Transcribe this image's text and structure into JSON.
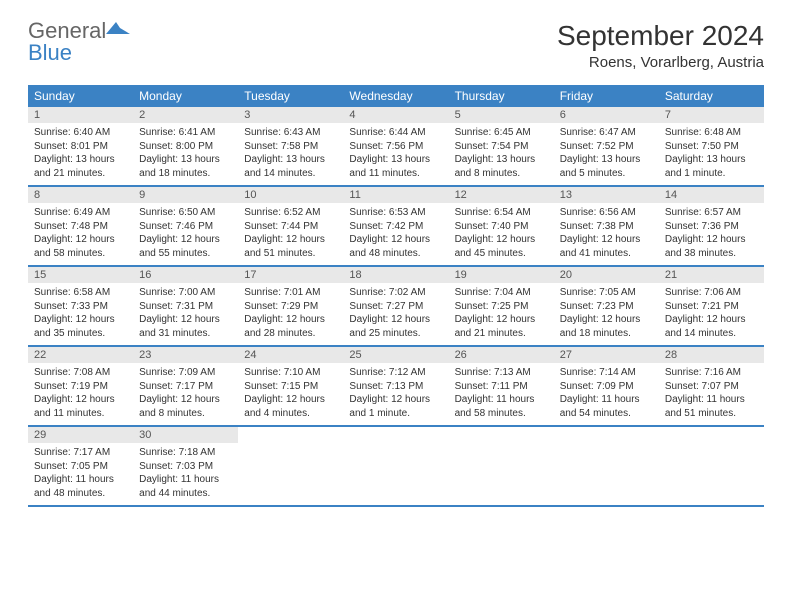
{
  "logo": {
    "general": "General",
    "blue": "Blue"
  },
  "header": {
    "title": "September 2024",
    "location": "Roens, Vorarlberg, Austria"
  },
  "colors": {
    "accent": "#3b82c4",
    "daynum_bg": "#e8e8e8",
    "text": "#333333",
    "header_text": "#ffffff"
  },
  "day_names": [
    "Sunday",
    "Monday",
    "Tuesday",
    "Wednesday",
    "Thursday",
    "Friday",
    "Saturday"
  ],
  "weeks": [
    [
      {
        "n": "1",
        "sr": "6:40 AM",
        "ss": "8:01 PM",
        "dl": "13 hours and 21 minutes."
      },
      {
        "n": "2",
        "sr": "6:41 AM",
        "ss": "8:00 PM",
        "dl": "13 hours and 18 minutes."
      },
      {
        "n": "3",
        "sr": "6:43 AM",
        "ss": "7:58 PM",
        "dl": "13 hours and 14 minutes."
      },
      {
        "n": "4",
        "sr": "6:44 AM",
        "ss": "7:56 PM",
        "dl": "13 hours and 11 minutes."
      },
      {
        "n": "5",
        "sr": "6:45 AM",
        "ss": "7:54 PM",
        "dl": "13 hours and 8 minutes."
      },
      {
        "n": "6",
        "sr": "6:47 AM",
        "ss": "7:52 PM",
        "dl": "13 hours and 5 minutes."
      },
      {
        "n": "7",
        "sr": "6:48 AM",
        "ss": "7:50 PM",
        "dl": "13 hours and 1 minute."
      }
    ],
    [
      {
        "n": "8",
        "sr": "6:49 AM",
        "ss": "7:48 PM",
        "dl": "12 hours and 58 minutes."
      },
      {
        "n": "9",
        "sr": "6:50 AM",
        "ss": "7:46 PM",
        "dl": "12 hours and 55 minutes."
      },
      {
        "n": "10",
        "sr": "6:52 AM",
        "ss": "7:44 PM",
        "dl": "12 hours and 51 minutes."
      },
      {
        "n": "11",
        "sr": "6:53 AM",
        "ss": "7:42 PM",
        "dl": "12 hours and 48 minutes."
      },
      {
        "n": "12",
        "sr": "6:54 AM",
        "ss": "7:40 PM",
        "dl": "12 hours and 45 minutes."
      },
      {
        "n": "13",
        "sr": "6:56 AM",
        "ss": "7:38 PM",
        "dl": "12 hours and 41 minutes."
      },
      {
        "n": "14",
        "sr": "6:57 AM",
        "ss": "7:36 PM",
        "dl": "12 hours and 38 minutes."
      }
    ],
    [
      {
        "n": "15",
        "sr": "6:58 AM",
        "ss": "7:33 PM",
        "dl": "12 hours and 35 minutes."
      },
      {
        "n": "16",
        "sr": "7:00 AM",
        "ss": "7:31 PM",
        "dl": "12 hours and 31 minutes."
      },
      {
        "n": "17",
        "sr": "7:01 AM",
        "ss": "7:29 PM",
        "dl": "12 hours and 28 minutes."
      },
      {
        "n": "18",
        "sr": "7:02 AM",
        "ss": "7:27 PM",
        "dl": "12 hours and 25 minutes."
      },
      {
        "n": "19",
        "sr": "7:04 AM",
        "ss": "7:25 PM",
        "dl": "12 hours and 21 minutes."
      },
      {
        "n": "20",
        "sr": "7:05 AM",
        "ss": "7:23 PM",
        "dl": "12 hours and 18 minutes."
      },
      {
        "n": "21",
        "sr": "7:06 AM",
        "ss": "7:21 PM",
        "dl": "12 hours and 14 minutes."
      }
    ],
    [
      {
        "n": "22",
        "sr": "7:08 AM",
        "ss": "7:19 PM",
        "dl": "12 hours and 11 minutes."
      },
      {
        "n": "23",
        "sr": "7:09 AM",
        "ss": "7:17 PM",
        "dl": "12 hours and 8 minutes."
      },
      {
        "n": "24",
        "sr": "7:10 AM",
        "ss": "7:15 PM",
        "dl": "12 hours and 4 minutes."
      },
      {
        "n": "25",
        "sr": "7:12 AM",
        "ss": "7:13 PM",
        "dl": "12 hours and 1 minute."
      },
      {
        "n": "26",
        "sr": "7:13 AM",
        "ss": "7:11 PM",
        "dl": "11 hours and 58 minutes."
      },
      {
        "n": "27",
        "sr": "7:14 AM",
        "ss": "7:09 PM",
        "dl": "11 hours and 54 minutes."
      },
      {
        "n": "28",
        "sr": "7:16 AM",
        "ss": "7:07 PM",
        "dl": "11 hours and 51 minutes."
      }
    ],
    [
      {
        "n": "29",
        "sr": "7:17 AM",
        "ss": "7:05 PM",
        "dl": "11 hours and 48 minutes."
      },
      {
        "n": "30",
        "sr": "7:18 AM",
        "ss": "7:03 PM",
        "dl": "11 hours and 44 minutes."
      },
      null,
      null,
      null,
      null,
      null
    ]
  ],
  "labels": {
    "sunrise": "Sunrise:",
    "sunset": "Sunset:",
    "daylight": "Daylight:"
  }
}
